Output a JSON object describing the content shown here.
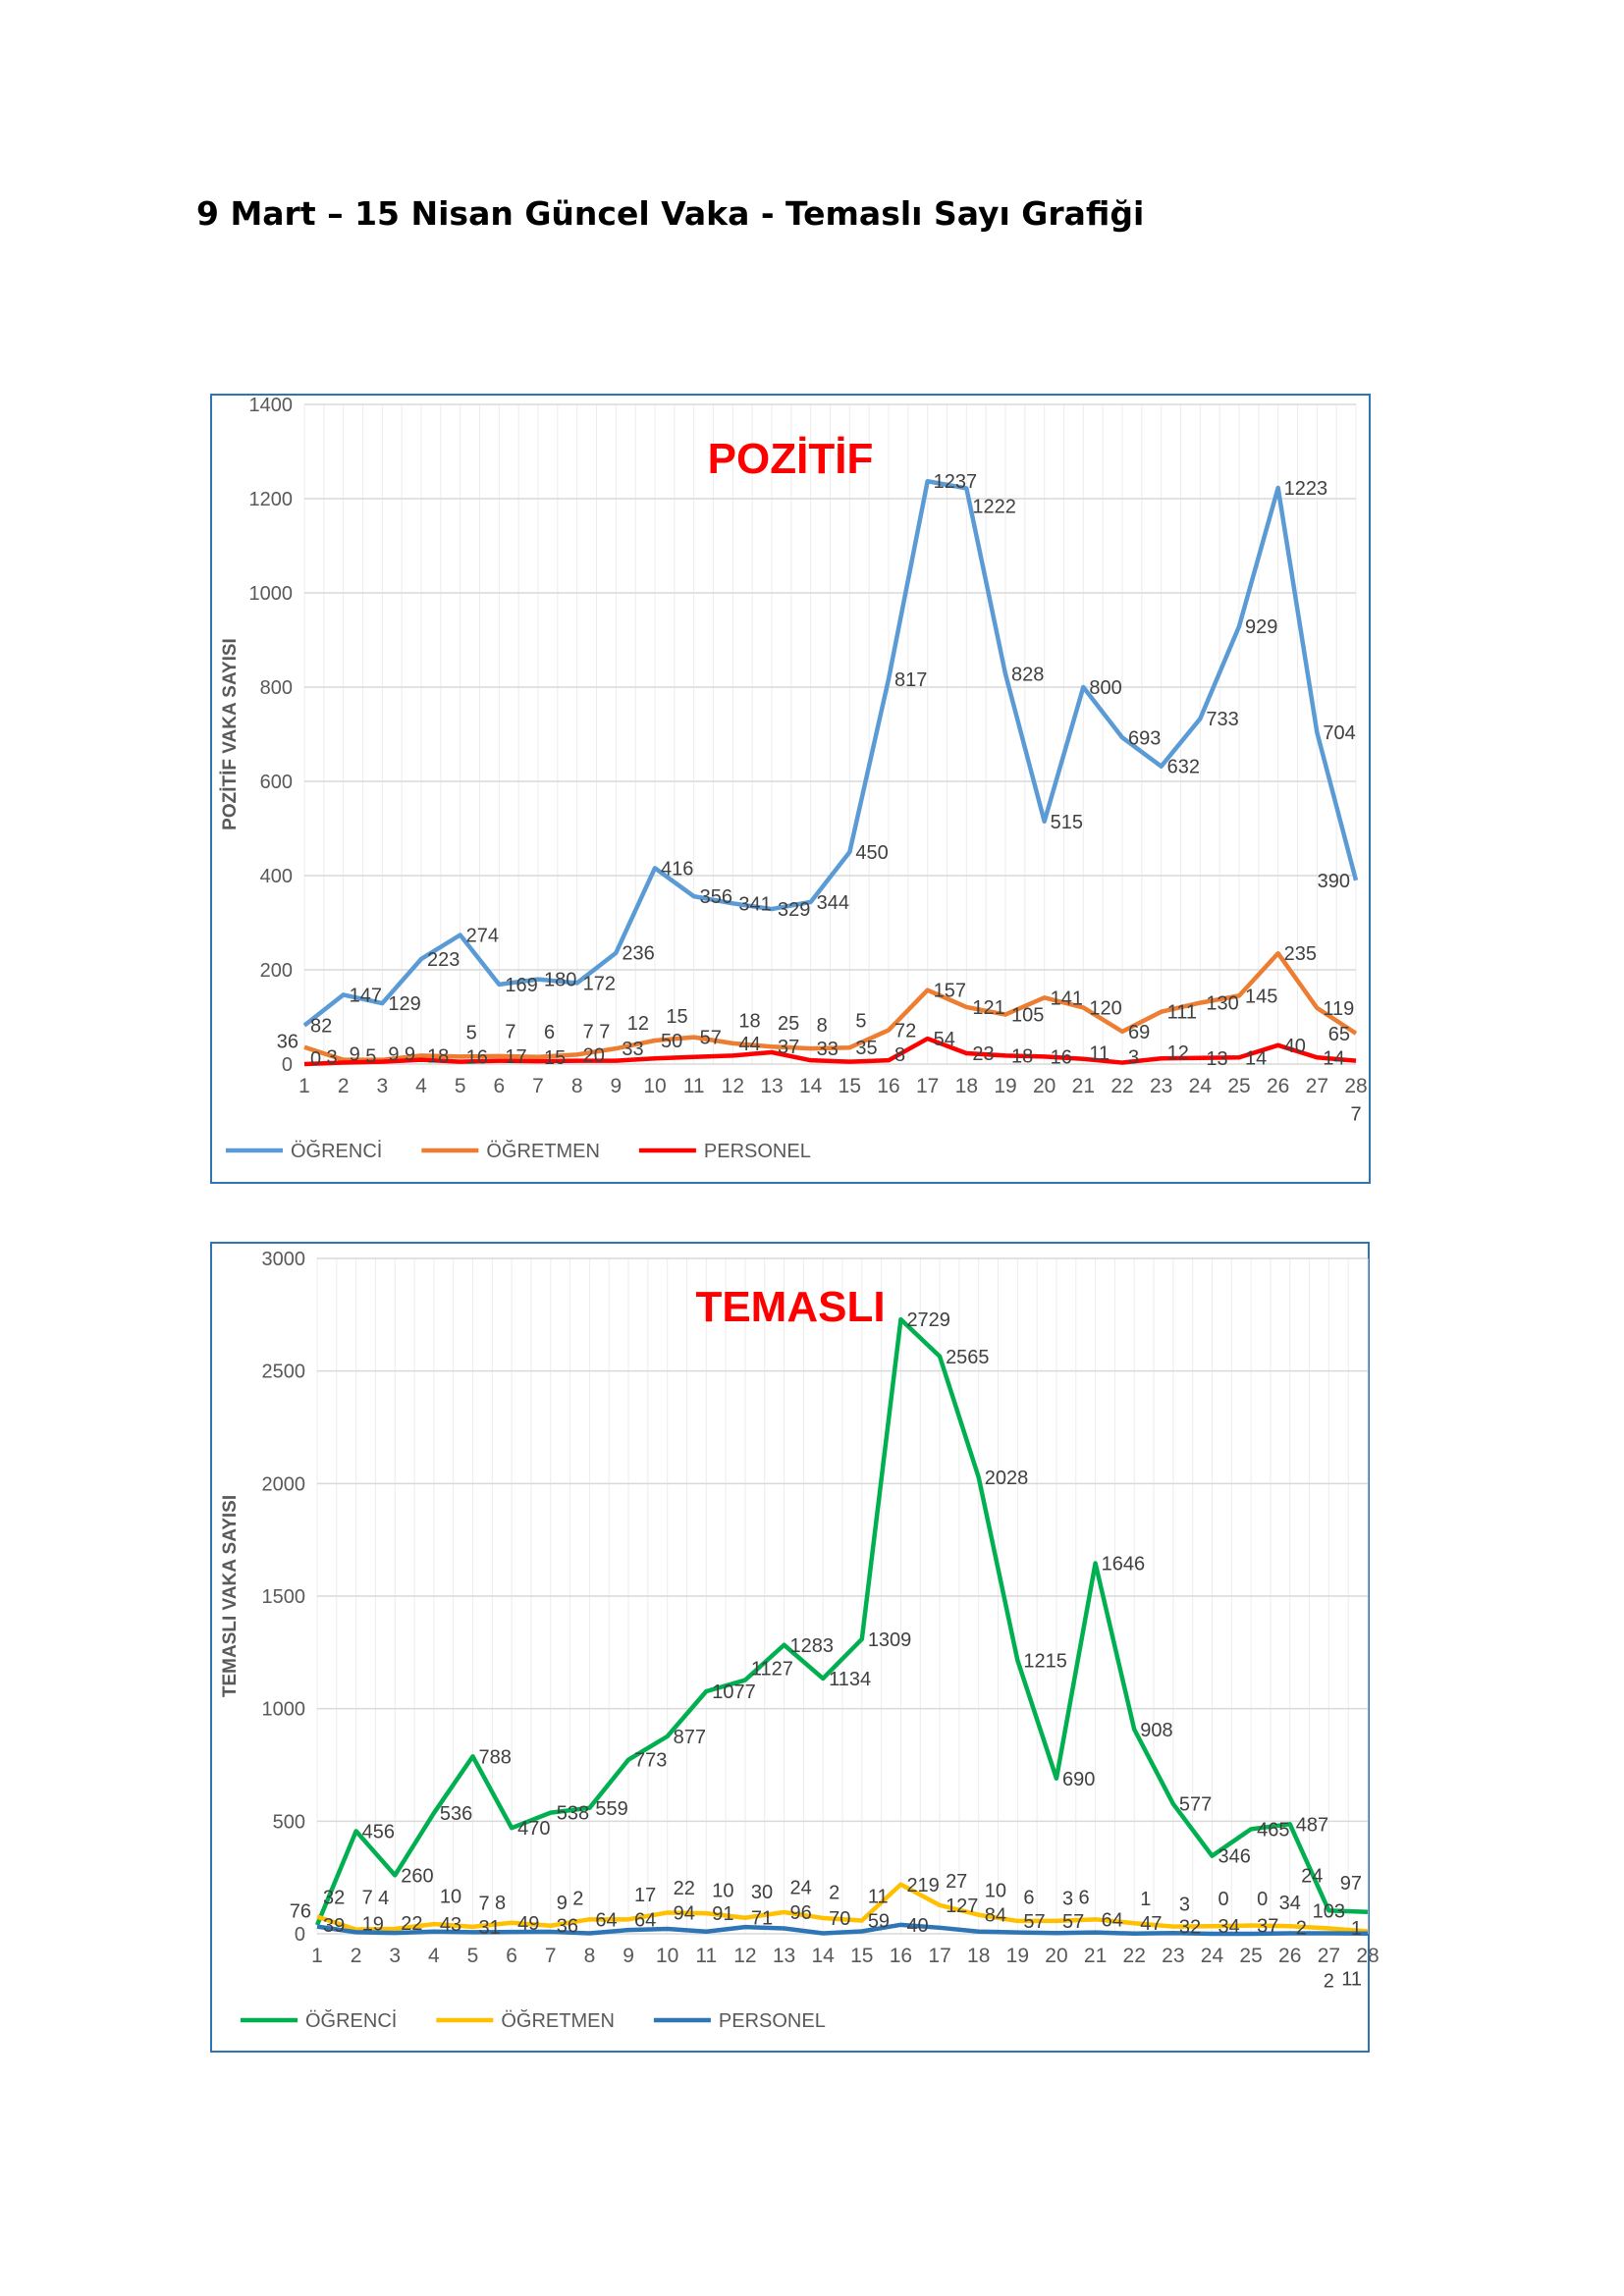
{
  "document": {
    "title": "9 Mart – 15 Nisan Güncel Vaka - Temaslı Sayı Grafiği"
  },
  "colors": {
    "frame": "#2e75b6",
    "title_red": "#ff0000"
  },
  "chart_data": [
    {
      "type": "line",
      "title": "POZİTİF",
      "ylabel": "POZİTİF VAKA SAYISI",
      "xlabel": "",
      "ylim": [
        0,
        1400
      ],
      "yticks": [
        0,
        200,
        400,
        600,
        800,
        1000,
        1200,
        1400
      ],
      "grid": true,
      "legend_position": "bottom-left",
      "x": [
        1,
        2,
        3,
        4,
        5,
        6,
        7,
        8,
        9,
        10,
        11,
        12,
        13,
        14,
        15,
        16,
        17,
        18,
        19,
        20,
        21,
        22,
        23,
        24,
        25,
        26,
        27,
        28
      ],
      "series": [
        {
          "name": "ÖĞRENCİ",
          "color": "#5b9bd5",
          "values": [
            82,
            147,
            129,
            223,
            274,
            169,
            180,
            172,
            236,
            416,
            356,
            341,
            329,
            344,
            450,
            817,
            1237,
            1222,
            828,
            515,
            800,
            693,
            632,
            733,
            929,
            1223,
            704,
            390
          ]
        },
        {
          "name": "ÖĞRETMEN",
          "color": "#ed7d31",
          "values": [
            36,
            9,
            9,
            18,
            16,
            17,
            15,
            20,
            33,
            50,
            57,
            44,
            37,
            33,
            35,
            72,
            157,
            121,
            105,
            141,
            120,
            69,
            111,
            130,
            145,
            235,
            119,
            65
          ]
        },
        {
          "name": "PERSONEL",
          "color": "#ff0000",
          "values": [
            0,
            3,
            5,
            9,
            5,
            7,
            6,
            7,
            7,
            12,
            15,
            18,
            25,
            8,
            5,
            8,
            54,
            23,
            18,
            16,
            11,
            3,
            12,
            13,
            14,
            40,
            14,
            7
          ]
        }
      ]
    },
    {
      "type": "line",
      "title": "TEMASLI",
      "ylabel": "TEMASLI VAKA SAYISI",
      "xlabel": "",
      "ylim": [
        0,
        3000
      ],
      "yticks": [
        0,
        500,
        1000,
        1500,
        2000,
        2500,
        3000
      ],
      "grid": true,
      "legend_position": "bottom-left",
      "x": [
        1,
        2,
        3,
        4,
        5,
        6,
        7,
        8,
        9,
        10,
        11,
        12,
        13,
        14,
        15,
        16,
        17,
        18,
        19,
        20,
        21,
        22,
        23,
        24,
        25,
        26,
        27,
        28
      ],
      "series": [
        {
          "name": "ÖĞRENCİ",
          "color": "#00b050",
          "values": [
            39,
            456,
            260,
            536,
            788,
            470,
            538,
            559,
            773,
            877,
            1077,
            1127,
            1283,
            1134,
            1309,
            2729,
            2565,
            2028,
            1215,
            690,
            1646,
            908,
            577,
            346,
            465,
            487,
            103,
            97
          ]
        },
        {
          "name": "ÖĞRETMEN",
          "color": "#ffc000",
          "values": [
            76,
            19,
            22,
            43,
            31,
            49,
            36,
            64,
            64,
            94,
            91,
            71,
            96,
            70,
            59,
            219,
            127,
            84,
            57,
            57,
            64,
            47,
            32,
            34,
            37,
            34,
            24,
            11
          ]
        },
        {
          "name": "PERSONEL",
          "color": "#2e75b6",
          "values": [
            32,
            7,
            4,
            10,
            7,
            8,
            9,
            2,
            17,
            22,
            10,
            30,
            24,
            2,
            11,
            40,
            27,
            10,
            6,
            3,
            6,
            1,
            3,
            0,
            0,
            2,
            2,
            1
          ]
        }
      ]
    }
  ]
}
